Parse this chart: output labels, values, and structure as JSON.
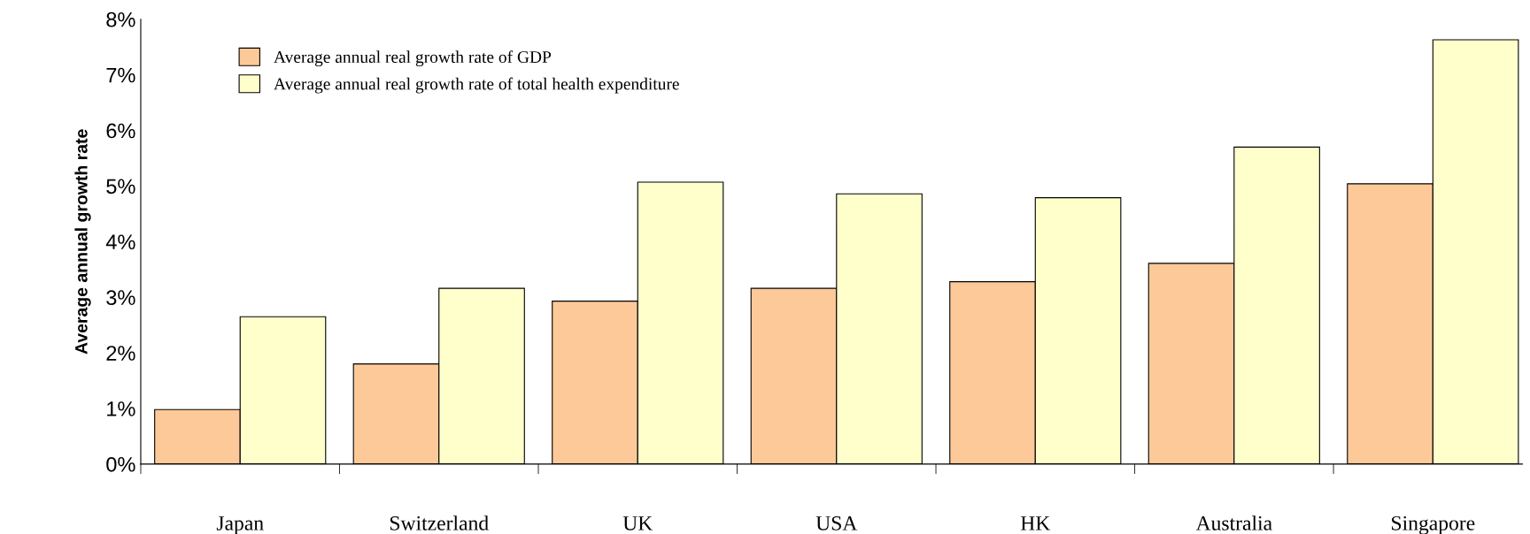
{
  "chart_data": {
    "type": "bar",
    "ylabel": "Average annual growth rate",
    "categories": [
      "Japan",
      "Switzerland",
      "UK",
      "USA",
      "HK",
      "Australia",
      "Singapore"
    ],
    "series": [
      {
        "name": "Average annual real growth rate of GDP",
        "color": "#fdc999",
        "values": [
          0.98,
          1.8,
          2.93,
          3.16,
          3.28,
          3.61,
          5.04
        ]
      },
      {
        "name": "Average annual real growth rate of total health expenditure",
        "color": "#ffffcc",
        "values": [
          2.65,
          3.16,
          5.07,
          4.86,
          4.79,
          5.7,
          7.63
        ]
      }
    ],
    "ylim": [
      0,
      8
    ],
    "yticks": [
      {
        "value": 0,
        "label": "0%"
      },
      {
        "value": 1,
        "label": "1%"
      },
      {
        "value": 2,
        "label": "2%"
      },
      {
        "value": 3,
        "label": "3%"
      },
      {
        "value": 4,
        "label": "4%"
      },
      {
        "value": 5,
        "label": "5%"
      },
      {
        "value": 6,
        "label": "6%"
      },
      {
        "value": 7,
        "label": "7%"
      },
      {
        "value": 8,
        "label": "8%"
      }
    ],
    "grid": false,
    "legend": "top left"
  }
}
